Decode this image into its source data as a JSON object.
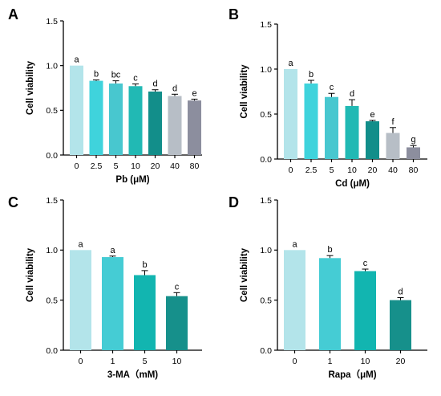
{
  "chart_data": [
    {
      "panel": "A",
      "type": "bar",
      "categories": [
        "0",
        "2.5",
        "5",
        "10",
        "20",
        "40",
        "80"
      ],
      "values": [
        1.0,
        0.83,
        0.8,
        0.77,
        0.71,
        0.66,
        0.61
      ],
      "errors": [
        0.0,
        0.01,
        0.03,
        0.025,
        0.02,
        0.02,
        0.015
      ],
      "sig_labels": [
        "a",
        "b",
        "bc",
        "c",
        "d",
        "d",
        "e"
      ],
      "colors": [
        "#b3e4ea",
        "#3fd3dc",
        "#48c7cf",
        "#21b9b4",
        "#128e8a",
        "#b7bec6",
        "#8c8e9e"
      ],
      "xlabel": "Pb (μM)",
      "ylabel": "Cell viability",
      "ylim": [
        0,
        1.5
      ],
      "yticks": [
        "0.0",
        "0.5",
        "1.0",
        "1.5"
      ]
    },
    {
      "panel": "B",
      "type": "bar",
      "categories": [
        "0",
        "2.5",
        "5",
        "10",
        "20",
        "40",
        "80"
      ],
      "values": [
        1.0,
        0.84,
        0.69,
        0.59,
        0.42,
        0.29,
        0.13
      ],
      "errors": [
        0.0,
        0.035,
        0.04,
        0.07,
        0.01,
        0.06,
        0.02
      ],
      "sig_labels": [
        "a",
        "b",
        "c",
        "d",
        "e",
        "f",
        "g"
      ],
      "colors": [
        "#b3e4ea",
        "#3fd3dc",
        "#48c7cf",
        "#21b9b4",
        "#128e8a",
        "#b7bec6",
        "#8c8e9e"
      ],
      "xlabel": "Cd (μM)",
      "ylabel": "Cell viability",
      "ylim": [
        0,
        1.5
      ],
      "yticks": [
        "0.0",
        "0.5",
        "1.0",
        "1.5"
      ]
    },
    {
      "panel": "C",
      "type": "bar",
      "categories": [
        "0",
        "1",
        "5",
        "10"
      ],
      "values": [
        1.0,
        0.93,
        0.75,
        0.54
      ],
      "errors": [
        0.0,
        0.01,
        0.045,
        0.035
      ],
      "sig_labels": [
        "a",
        "a",
        "b",
        "c"
      ],
      "colors": [
        "#b3e4ea",
        "#45ccd4",
        "#12b5b0",
        "#16908b"
      ],
      "xlabel": "3-MA（mM)",
      "ylabel": "Cell viability",
      "ylim": [
        0,
        1.5
      ],
      "yticks": [
        "0.0",
        "0.5",
        "1.0",
        "1.5"
      ]
    },
    {
      "panel": "D",
      "type": "bar",
      "categories": [
        "0",
        "1",
        "10",
        "20"
      ],
      "values": [
        1.0,
        0.92,
        0.79,
        0.5
      ],
      "errors": [
        0.0,
        0.025,
        0.02,
        0.025
      ],
      "sig_labels": [
        "a",
        "b",
        "c",
        "d"
      ],
      "colors": [
        "#b3e4ea",
        "#45ccd4",
        "#12b5b0",
        "#16908b"
      ],
      "xlabel": "Rapa（μM)",
      "ylabel": "Cell viability",
      "ylim": [
        0,
        1.5
      ],
      "yticks": [
        "0.0",
        "0.5",
        "1.0",
        "1.5"
      ]
    }
  ]
}
